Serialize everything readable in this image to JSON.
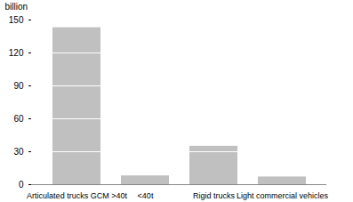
{
  "chart_data": {
    "type": "bar",
    "categories": [
      "Articulated trucks GCM >40t",
      "<40t",
      "Rigid trucks",
      "Light commercial vehicles"
    ],
    "values": [
      143,
      8,
      35,
      7
    ],
    "color": "#c0c0c0",
    "y_label": "billion",
    "ylim": [
      0,
      150
    ],
    "yticks": [
      0,
      30,
      60,
      90,
      120,
      150
    ],
    "grid": true
  }
}
